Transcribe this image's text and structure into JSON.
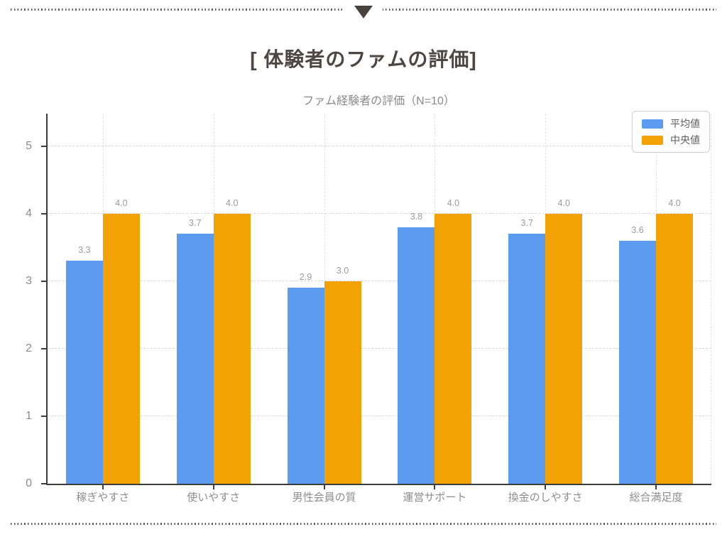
{
  "decor": {
    "rule_color": "#5d5955",
    "triangle_color": "#48413e"
  },
  "header": {
    "title": "[ 体験者のファムの評価]"
  },
  "chart_data": {
    "type": "bar",
    "title": "ファム経験者の評価（N=10）",
    "categories": [
      "稼ぎやすさ",
      "使いやすさ",
      "男性会員の質",
      "運営サポート",
      "換金のしやすさ",
      "総合満足度"
    ],
    "series": [
      {
        "name": "平均値",
        "color": "#5B9CF0",
        "values": [
          3.3,
          3.7,
          2.9,
          3.8,
          3.7,
          3.6
        ]
      },
      {
        "name": "中央値",
        "color": "#F2A205",
        "values": [
          4.0,
          4.0,
          3.0,
          4.0,
          4.0,
          4.0
        ]
      }
    ],
    "value_label_decimals": 1,
    "ylim": [
      0,
      5.5
    ],
    "yticks": [
      0,
      1,
      2,
      3,
      4,
      5
    ],
    "grid": true,
    "legend_position": "top-right"
  }
}
